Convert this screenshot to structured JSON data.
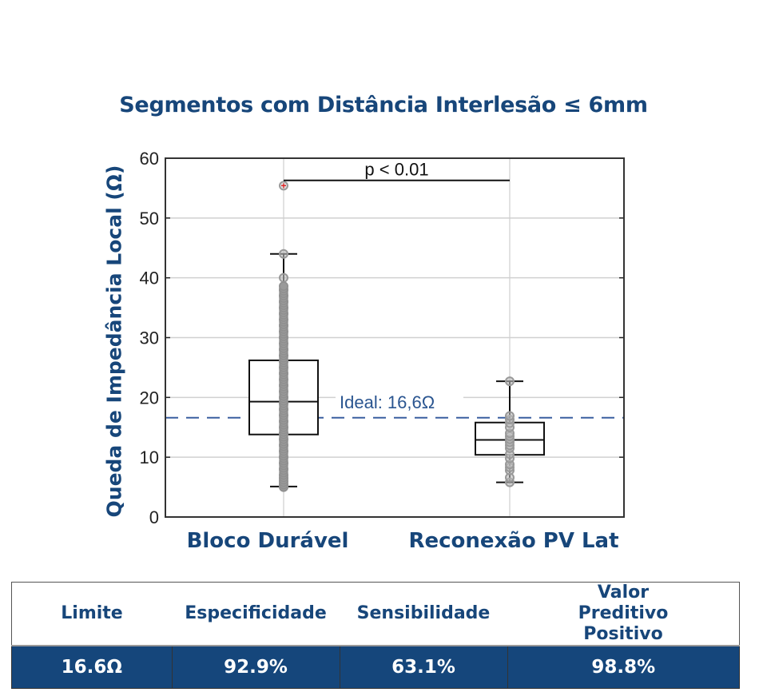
{
  "chart_data": {
    "type": "box",
    "title": "Segmentos com Distância Interlesão ≤ 6mm",
    "ylabel": "Queda de Impedância Local (Ω)",
    "xlabel": "",
    "ylim": [
      0,
      60
    ],
    "yticks": [
      "0",
      "10",
      "20",
      "30",
      "40",
      "50",
      "60"
    ],
    "grid": true,
    "categories": [
      "Bloco Durável",
      "Reconexão PV Lat"
    ],
    "boxes": [
      {
        "name": "Bloco Durável",
        "whisker_low": 5.1,
        "q1": 13.8,
        "median": 19.3,
        "q3": 26.2,
        "whisker_high": 44.0,
        "outliers": [
          55.4
        ],
        "points": [
          5,
          5.5,
          6,
          6.5,
          7,
          8,
          9,
          10,
          11,
          12,
          13,
          14,
          15,
          16,
          17,
          18,
          19,
          20,
          21,
          22,
          23,
          24,
          25,
          26,
          27,
          28,
          29,
          30,
          31,
          32,
          33,
          34,
          35,
          36,
          37,
          38,
          38.6,
          40,
          44
        ]
      },
      {
        "name": "Reconexão PV Lat",
        "whisker_low": 5.8,
        "q1": 10.4,
        "median": 12.9,
        "q3": 15.8,
        "whisker_high": 22.7,
        "outliers": [],
        "points": [
          5.8,
          6.6,
          7.8,
          8.3,
          8.8,
          9.8,
          10.5,
          11.5,
          12,
          12.5,
          13,
          13.5,
          14,
          15,
          15.7,
          16.3,
          16.9,
          22.7
        ]
      }
    ],
    "reference_line": {
      "value": 16.6,
      "label": "Ideal: 16,6Ω",
      "color": "#3a5fa0"
    },
    "annotation": {
      "label": "p < 0.01",
      "from": "Bloco Durável",
      "to": "Reconexão PV Lat",
      "y": 56.3
    }
  },
  "table": {
    "headers": [
      "Limite",
      "Especificidade",
      "Sensibilidade",
      "Valor Preditivo Positivo"
    ],
    "values": [
      "16.6Ω",
      "92.9%",
      "63.1%",
      "98.8%"
    ]
  }
}
